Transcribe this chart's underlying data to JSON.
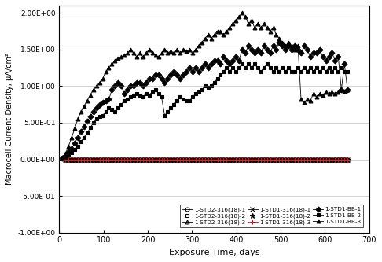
{
  "title": "",
  "xlabel": "Exposure Time, days",
  "ylabel": "Macrocell Current Density, μA/cm²",
  "xlim": [
    0,
    700
  ],
  "ylim": [
    -1.0,
    2.1
  ],
  "yticks": [
    -1.0,
    -0.5,
    0.0,
    0.5,
    1.0,
    1.5,
    2.0
  ],
  "ytick_labels": [
    "-1.00E+00",
    "-5.00E-01",
    "0.00E+00",
    "5.00E-01",
    "1.00E+00",
    "1.50E+00",
    "2.00E+00"
  ],
  "xticks": [
    0,
    100,
    200,
    300,
    400,
    500,
    600,
    700
  ],
  "zero_series": [
    {
      "label": "1-STD2-316(18)-1",
      "marker": "o",
      "color": "black",
      "fillstyle": "none",
      "msize": 3.5
    },
    {
      "label": "1-STD2-316(18)-2",
      "marker": "s",
      "color": "black",
      "fillstyle": "none",
      "msize": 3.5
    },
    {
      "label": "1-STD2-316(18)-3",
      "marker": "^",
      "color": "black",
      "fillstyle": "none",
      "msize": 3.5
    },
    {
      "label": "1-STD1-316(18)-1",
      "marker": "x",
      "color": "black",
      "fillstyle": "full",
      "msize": 4
    },
    {
      "label": "1-STD1-316(18)-2",
      "marker": "*",
      "color": "black",
      "fillstyle": "full",
      "msize": 5
    },
    {
      "label": "1-STD1-316(18)-3",
      "marker": "+",
      "color": "red",
      "fillstyle": "full",
      "msize": 4
    }
  ],
  "zero_x": [
    14,
    21,
    28,
    35,
    42,
    49,
    56,
    63,
    70,
    77,
    84,
    91,
    98,
    105,
    112,
    119,
    126,
    133,
    140,
    147,
    154,
    161,
    168,
    175,
    182,
    189,
    196,
    203,
    210,
    217,
    224,
    231,
    238,
    245,
    252,
    259,
    266,
    273,
    280,
    287,
    294,
    301,
    308,
    315,
    322,
    329,
    336,
    343,
    350,
    357,
    364,
    371,
    378,
    385,
    392,
    399,
    406,
    413,
    420,
    427,
    434,
    441,
    448,
    455,
    462,
    469,
    476,
    483,
    490,
    497,
    504,
    511,
    518,
    525,
    532,
    539,
    546,
    553,
    560,
    567,
    574,
    581,
    588,
    595,
    602,
    609,
    616,
    623,
    630,
    637,
    644,
    651
  ],
  "BB1_x": [
    7,
    14,
    21,
    28,
    35,
    42,
    49,
    56,
    63,
    70,
    77,
    84,
    91,
    98,
    105,
    112,
    119,
    126,
    133,
    140,
    147,
    154,
    161,
    168,
    175,
    182,
    189,
    196,
    203,
    210,
    217,
    224,
    231,
    238,
    245,
    252,
    259,
    266,
    273,
    280,
    287,
    294,
    301,
    308,
    315,
    322,
    329,
    336,
    343,
    350,
    357,
    364,
    371,
    378,
    385,
    392,
    399,
    406,
    413,
    420,
    427,
    434,
    441,
    448,
    455,
    462,
    469,
    476,
    483,
    490,
    497,
    504,
    511,
    518,
    525,
    532,
    539,
    546,
    553,
    560,
    567,
    574,
    581,
    588,
    595,
    602,
    609,
    616,
    623,
    630,
    637,
    644,
    651
  ],
  "BB1_y": [
    0.02,
    0.05,
    0.1,
    0.15,
    0.22,
    0.3,
    0.38,
    0.45,
    0.52,
    0.58,
    0.65,
    0.7,
    0.75,
    0.78,
    0.8,
    0.82,
    0.95,
    1.0,
    1.05,
    1.0,
    0.9,
    0.95,
    1.0,
    1.0,
    1.05,
    1.05,
    1.0,
    1.05,
    1.1,
    1.1,
    1.15,
    1.15,
    1.1,
    1.05,
    1.1,
    1.15,
    1.2,
    1.15,
    1.1,
    1.15,
    1.2,
    1.25,
    1.2,
    1.25,
    1.2,
    1.25,
    1.3,
    1.25,
    1.3,
    1.35,
    1.35,
    1.3,
    1.4,
    1.35,
    1.3,
    1.35,
    1.4,
    1.35,
    1.5,
    1.45,
    1.55,
    1.5,
    1.45,
    1.5,
    1.45,
    1.55,
    1.5,
    1.45,
    1.55,
    1.5,
    1.6,
    1.55,
    1.5,
    1.55,
    1.5,
    1.55,
    1.5,
    1.45,
    1.55,
    1.5,
    1.4,
    1.45,
    1.45,
    1.5,
    1.4,
    1.35,
    1.4,
    1.45,
    1.35,
    1.4,
    0.95,
    1.3,
    0.95
  ],
  "BB2_x": [
    7,
    14,
    21,
    28,
    35,
    42,
    49,
    56,
    63,
    70,
    77,
    84,
    91,
    98,
    105,
    112,
    119,
    126,
    133,
    140,
    147,
    154,
    161,
    168,
    175,
    182,
    189,
    196,
    203,
    210,
    217,
    224,
    231,
    238,
    245,
    252,
    259,
    266,
    273,
    280,
    287,
    294,
    301,
    308,
    315,
    322,
    329,
    336,
    343,
    350,
    357,
    364,
    371,
    378,
    385,
    392,
    399,
    406,
    413,
    420,
    427,
    434,
    441,
    448,
    455,
    462,
    469,
    476,
    483,
    490,
    497,
    504,
    511,
    518,
    525,
    532,
    539,
    546,
    553,
    560,
    567,
    574,
    581,
    588,
    595,
    602,
    609,
    616,
    623,
    630,
    637,
    644,
    651
  ],
  "BB2_y": [
    0.01,
    0.03,
    0.06,
    0.09,
    0.13,
    0.18,
    0.24,
    0.3,
    0.36,
    0.43,
    0.5,
    0.55,
    0.58,
    0.6,
    0.65,
    0.7,
    0.68,
    0.65,
    0.7,
    0.75,
    0.8,
    0.82,
    0.85,
    0.88,
    0.9,
    0.88,
    0.85,
    0.9,
    0.88,
    0.92,
    0.95,
    0.9,
    0.85,
    0.6,
    0.65,
    0.7,
    0.75,
    0.8,
    0.85,
    0.82,
    0.8,
    0.8,
    0.85,
    0.9,
    0.92,
    0.95,
    1.0,
    0.98,
    1.0,
    1.05,
    1.1,
    1.15,
    1.2,
    1.25,
    1.2,
    1.25,
    1.2,
    1.25,
    1.3,
    1.25,
    1.3,
    1.25,
    1.3,
    1.25,
    1.2,
    1.25,
    1.3,
    1.25,
    1.2,
    1.25,
    1.2,
    1.25,
    1.2,
    1.25,
    1.2,
    1.2,
    1.25,
    1.2,
    1.25,
    1.2,
    1.25,
    1.2,
    1.25,
    1.2,
    1.25,
    1.2,
    1.25,
    1.2,
    1.25,
    1.2,
    1.25,
    1.2,
    1.2
  ],
  "BB3_x": [
    7,
    14,
    21,
    28,
    35,
    42,
    49,
    56,
    63,
    70,
    77,
    84,
    91,
    98,
    105,
    112,
    119,
    126,
    133,
    140,
    147,
    154,
    161,
    168,
    175,
    182,
    189,
    196,
    203,
    210,
    217,
    224,
    231,
    238,
    245,
    252,
    259,
    266,
    273,
    280,
    287,
    294,
    301,
    308,
    315,
    322,
    329,
    336,
    343,
    350,
    357,
    364,
    371,
    378,
    385,
    392,
    399,
    406,
    413,
    420,
    427,
    434,
    441,
    448,
    455,
    462,
    469,
    476,
    483,
    490,
    497,
    504,
    511,
    518,
    525,
    532,
    539,
    546,
    553,
    560,
    567,
    574,
    581,
    588,
    595,
    602,
    609,
    616,
    623,
    630,
    637,
    644,
    651
  ],
  "BB3_y": [
    0.03,
    0.08,
    0.18,
    0.3,
    0.42,
    0.55,
    0.65,
    0.73,
    0.8,
    0.88,
    0.95,
    1.0,
    1.05,
    1.1,
    1.2,
    1.25,
    1.3,
    1.35,
    1.38,
    1.4,
    1.42,
    1.45,
    1.5,
    1.45,
    1.4,
    1.45,
    1.4,
    1.45,
    1.5,
    1.45,
    1.42,
    1.4,
    1.45,
    1.5,
    1.45,
    1.48,
    1.45,
    1.5,
    1.45,
    1.5,
    1.48,
    1.5,
    1.45,
    1.5,
    1.55,
    1.6,
    1.65,
    1.7,
    1.65,
    1.7,
    1.75,
    1.75,
    1.7,
    1.75,
    1.8,
    1.85,
    1.9,
    1.95,
    2.0,
    1.95,
    1.85,
    1.9,
    1.8,
    1.85,
    1.8,
    1.85,
    1.8,
    1.75,
    1.8,
    1.7,
    1.65,
    1.6,
    1.55,
    1.6,
    1.55,
    1.5,
    1.55,
    0.82,
    0.78,
    0.82,
    0.8,
    0.9,
    0.85,
    0.9,
    0.88,
    0.92,
    0.9,
    0.92,
    0.9,
    0.92,
    0.95,
    0.93,
    0.95
  ]
}
